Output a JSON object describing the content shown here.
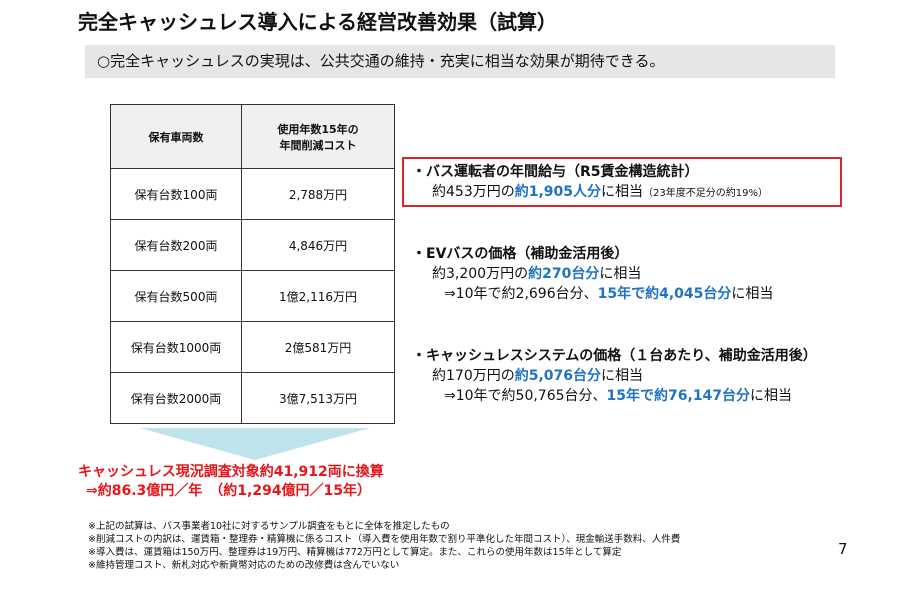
{
  "title": "完全キャッシュレス導入による経営改善効果（試算）",
  "subtitle": "○完全キャッシュレスの実現は、公共交通の維持・充実に相当な効果が期待できる。",
  "table": {
    "headers": [
      "保有車両数",
      "使用年数15年の\n年間削減コスト"
    ],
    "rows": [
      [
        "保有台数100両",
        "2,788万円"
      ],
      [
        "保有台数200両",
        "4,846万円"
      ],
      [
        "保有台数500両",
        "1億2,116万円"
      ],
      [
        "保有台数1000両",
        "2億581万円"
      ],
      [
        "保有台数2000両",
        "3億7,513万円"
      ]
    ]
  },
  "conversion": {
    "line1": "キャッシュレス現況調査対象約41,912両に換算",
    "line2": "⇒約86.3億円／年　（約1,294億円／15年）"
  },
  "items": [
    {
      "heading": "・バス運転者の年間給与（R5賃金構造統計）",
      "l1a": "約453万円の",
      "l1b": "約1,905人分",
      "l1c": "に相当",
      "l1d": "（23年度不足分の約19%）"
    },
    {
      "heading": "・EVバスの価格（補助金活用後）",
      "l1a": "約3,200万円の",
      "l1b": "約270台分",
      "l1c": "に相当",
      "l2a": "⇒10年で約2,696台分、",
      "l2b": "15年で約4,045台分",
      "l2c": "に相当"
    },
    {
      "heading": "・キャッシュレスシステムの価格（１台あたり、補助金活用後）",
      "l1a": "約170万円の",
      "l1b": "約5,076台分",
      "l1c": "に相当",
      "l2a": "⇒10年で約50,765台分、",
      "l2b": "15年で約76,147台分",
      "l2c": "に相当"
    }
  ],
  "notes": [
    "※上記の試算は、バス事業者10社に対するサンプル調査をもとに全体を推定したもの",
    "※削減コストの内訳は、運賃箱・整理券・精算機に係るコスト（導入費を使用年数で割り平準化した年間コスト）、現金輸送手数料、人件費",
    "※導入費は、運賃箱は150万円、整理券は19万円、精算機は772万円として算定。また、これらの使用年数は15年として算定",
    "※維持管理コスト、新札対応や新貨幣対応のための改修費は含んでいない"
  ],
  "page_number": "7",
  "colors": {
    "highlight_blue": "#1f73c4",
    "red": "#e8141b",
    "arrow": "#bfe3ea"
  }
}
